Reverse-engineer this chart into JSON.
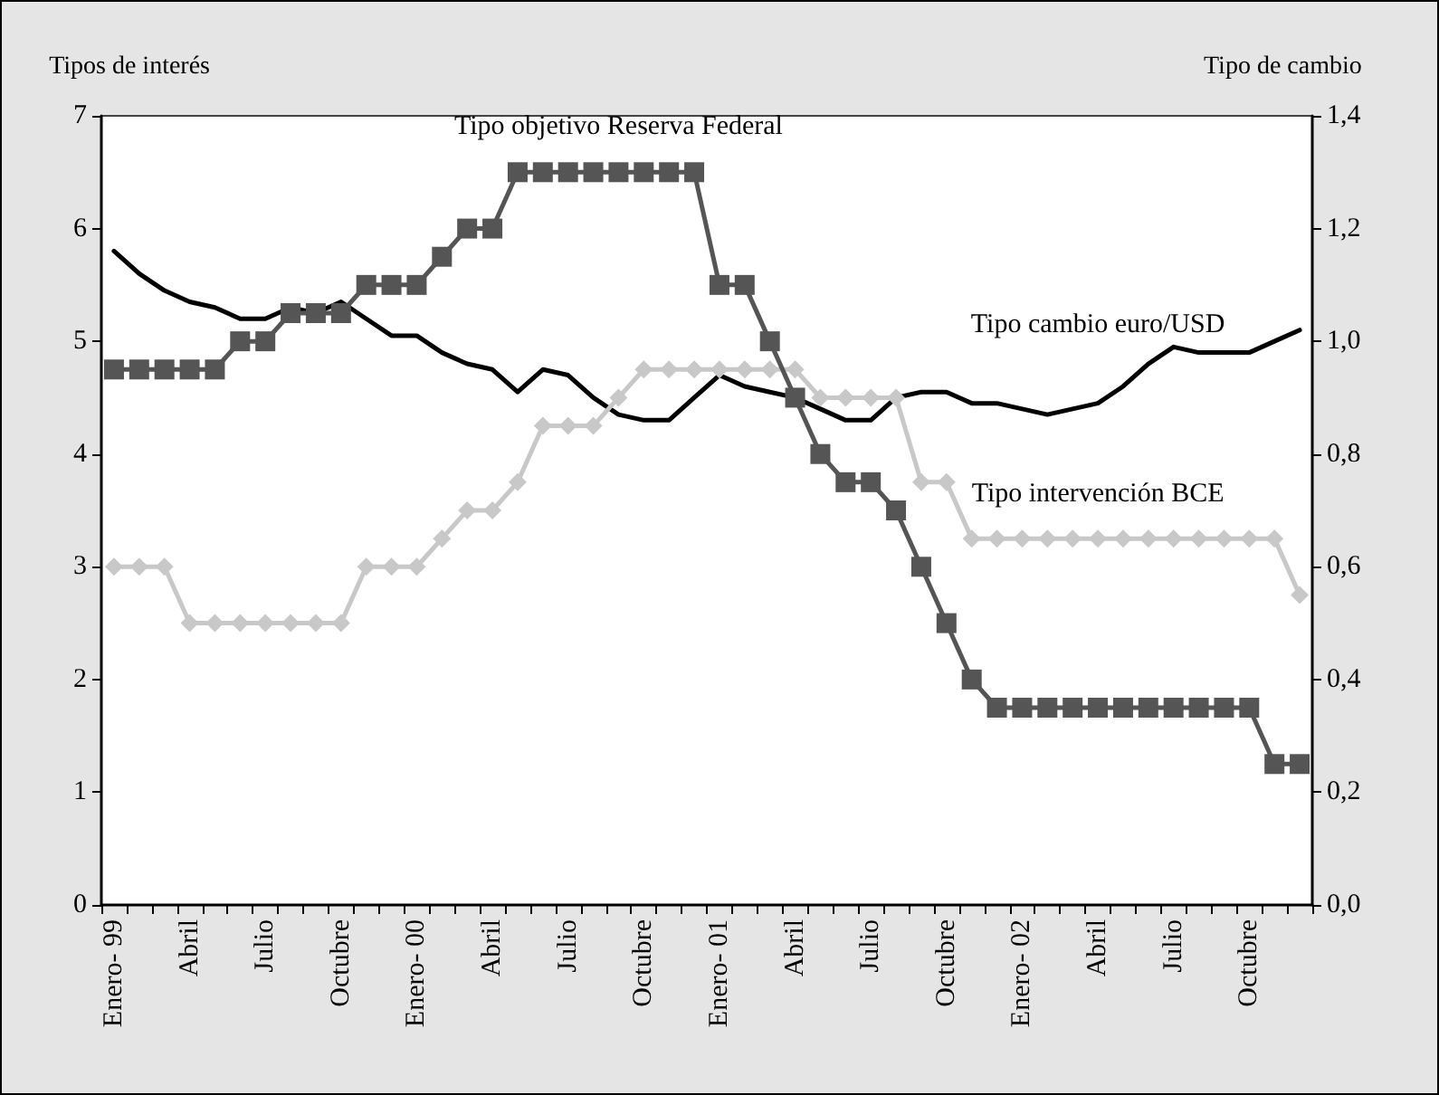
{
  "chart_data": {
    "type": "line",
    "ylabel": "Tipos de interés",
    "y2label": "Tipo de cambio",
    "categories": [
      "Enero- 99",
      null,
      null,
      "Abril",
      null,
      null,
      "Julio",
      null,
      null,
      "Octubre",
      null,
      null,
      "Enero- 00",
      null,
      null,
      "Abril",
      null,
      null,
      "Julio",
      null,
      null,
      "Octubre",
      null,
      null,
      "Enero- 01",
      null,
      null,
      "Abril",
      null,
      null,
      "Julio",
      null,
      null,
      "Octubre",
      null,
      null,
      "Enero- 02",
      null,
      null,
      "Abril",
      null,
      null,
      "Julio",
      null,
      null,
      "Octubre",
      null,
      null
    ],
    "series": [
      {
        "name": "Tipo objetivo Reserva Federal",
        "color": "#555555",
        "marker": "square",
        "values": [
          4.75,
          4.75,
          4.75,
          4.75,
          4.75,
          5.0,
          5.0,
          5.25,
          5.25,
          5.25,
          5.5,
          5.5,
          5.5,
          5.75,
          6.0,
          6.0,
          6.5,
          6.5,
          6.5,
          6.5,
          6.5,
          6.5,
          6.5,
          6.5,
          5.5,
          5.5,
          5.0,
          4.5,
          4.0,
          3.75,
          3.75,
          3.5,
          3.0,
          2.5,
          2.0,
          1.75,
          1.75,
          1.75,
          1.75,
          1.75,
          1.75,
          1.75,
          1.75,
          1.75,
          1.75,
          1.75,
          1.25,
          1.25
        ]
      },
      {
        "name": "Tipo intervención BCE",
        "color": "#c8c8c8",
        "marker": "diamond",
        "values": [
          3.0,
          3.0,
          3.0,
          2.5,
          2.5,
          2.5,
          2.5,
          2.5,
          2.5,
          2.5,
          3.0,
          3.0,
          3.0,
          3.25,
          3.5,
          3.5,
          3.75,
          4.25,
          4.25,
          4.25,
          4.5,
          4.75,
          4.75,
          4.75,
          4.75,
          4.75,
          4.75,
          4.75,
          4.5,
          4.5,
          4.5,
          4.5,
          3.75,
          3.75,
          3.25,
          3.25,
          3.25,
          3.25,
          3.25,
          3.25,
          3.25,
          3.25,
          3.25,
          3.25,
          3.25,
          3.25,
          3.25,
          2.75
        ]
      },
      {
        "name": "Tipo cambio euro/USD",
        "color": "#000000",
        "marker": "none",
        "axis": "y2",
        "values": [
          1.16,
          1.12,
          1.09,
          1.07,
          1.06,
          1.04,
          1.04,
          1.06,
          1.05,
          1.07,
          1.04,
          1.01,
          1.01,
          0.98,
          0.96,
          0.95,
          0.91,
          0.95,
          0.94,
          0.9,
          0.87,
          0.86,
          0.86,
          0.9,
          0.94,
          0.92,
          0.91,
          0.9,
          0.88,
          0.86,
          0.86,
          0.9,
          0.91,
          0.91,
          0.89,
          0.89,
          0.88,
          0.87,
          0.88,
          0.89,
          0.92,
          0.96,
          0.99,
          0.98,
          0.98,
          0.98,
          1.0,
          1.02
        ]
      }
    ],
    "ylim": [
      0,
      7
    ],
    "yticks": [
      0,
      1,
      2,
      3,
      4,
      5,
      6,
      7
    ],
    "y2lim": [
      0,
      1.4
    ],
    "y2ticks": [
      {
        "value": 0,
        "label": "0,0"
      },
      {
        "value": 0.2,
        "label": "0,2"
      },
      {
        "value": 0.4,
        "label": "0,4"
      },
      {
        "value": 0.6,
        "label": "0,6"
      },
      {
        "value": 0.8,
        "label": "0,8"
      },
      {
        "value": 1.0,
        "label": "1,0"
      },
      {
        "value": 1.2,
        "label": "1,2"
      },
      {
        "value": 1.4,
        "label": "1,4"
      }
    ],
    "grid": false,
    "legend": false,
    "line_style": "solid"
  }
}
